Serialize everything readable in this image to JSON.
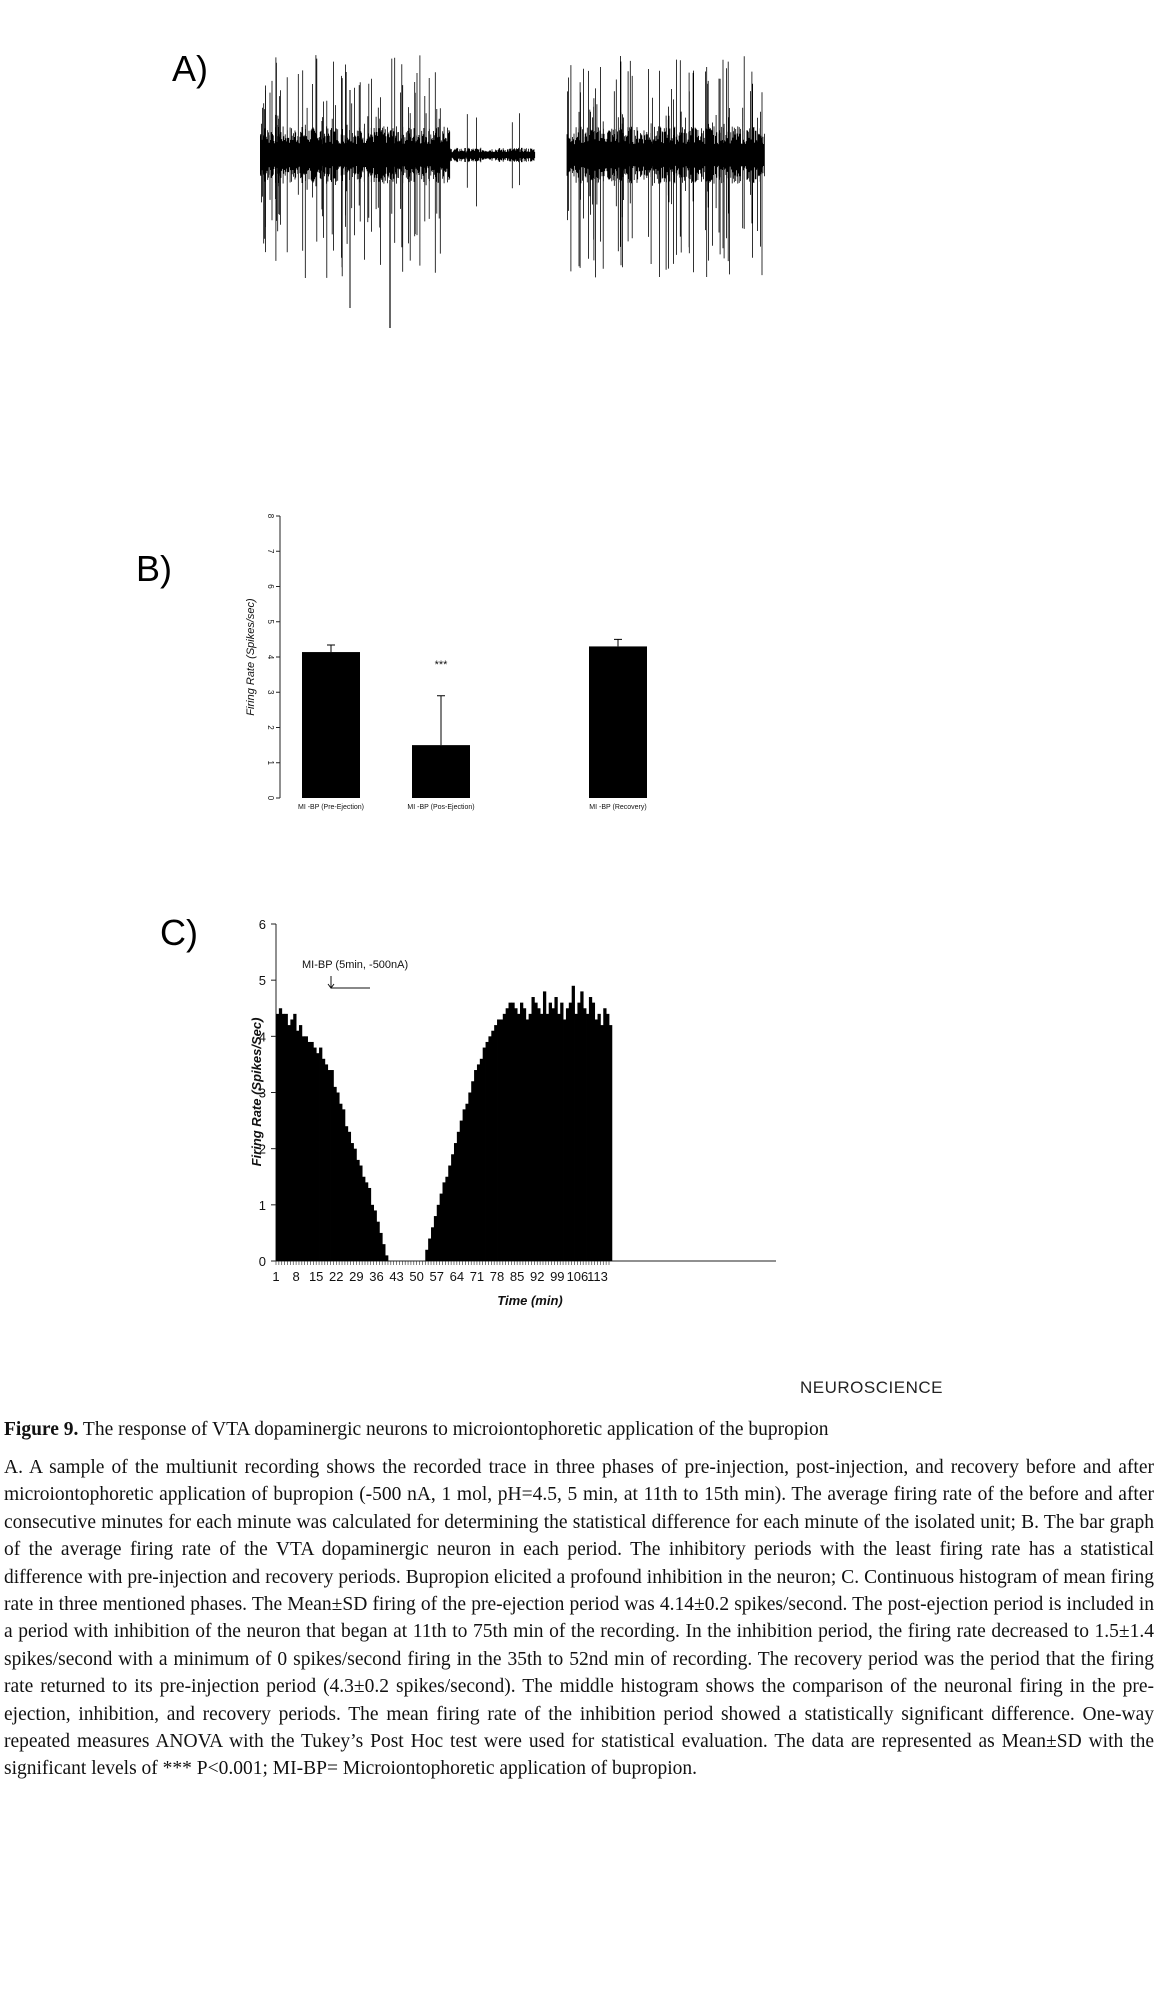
{
  "panels": {
    "a": {
      "label": "A)"
    },
    "b": {
      "label": "B)"
    },
    "c": {
      "label": "C)"
    }
  },
  "chart_data": [
    {
      "type": "bar",
      "panel": "B",
      "ylabel": "Firing Rate (Spikes/sec)",
      "ylim": [
        0,
        8
      ],
      "yticks": [
        "0",
        "1",
        "2",
        "3",
        "4",
        "5",
        "6",
        "7",
        "8"
      ],
      "categories": [
        "MI -BP (Pre-Ejection)",
        "MI -BP (Pos-Ejection)",
        "MI -BP (Recovery)"
      ],
      "values": [
        4.14,
        1.5,
        4.3
      ],
      "errors": [
        0.2,
        1.4,
        0.2
      ],
      "significance": [
        "",
        "***",
        ""
      ]
    },
    {
      "type": "bar",
      "panel": "C",
      "xlabel": "Time (min)",
      "ylabel": "Firing Rate (Spikes/Sec)",
      "ylim": [
        0,
        6
      ],
      "yticks": [
        "0",
        "1",
        "2",
        "3",
        "4",
        "5",
        "6"
      ],
      "xticks": [
        "1",
        "8",
        "15",
        "22",
        "29",
        "36",
        "43",
        "50",
        "57",
        "64",
        "71",
        "78",
        "85",
        "92",
        "99",
        "106",
        "113"
      ],
      "annotation": "MI-BP (5min, -500nA)",
      "x_start": 1,
      "x_end": 117,
      "values": [
        4.4,
        4.5,
        4.4,
        4.4,
        4.2,
        4.3,
        4.4,
        4.1,
        4.2,
        4.0,
        4.0,
        3.9,
        3.9,
        3.8,
        3.7,
        3.8,
        3.6,
        3.5,
        3.4,
        3.4,
        3.1,
        3.0,
        2.8,
        2.7,
        2.4,
        2.3,
        2.1,
        2.0,
        1.8,
        1.7,
        1.5,
        1.4,
        1.3,
        1.0,
        0.9,
        0.7,
        0.5,
        0.3,
        0.1,
        0,
        0,
        0,
        0,
        0,
        0,
        0,
        0,
        0,
        0,
        0,
        0,
        0,
        0.2,
        0.4,
        0.6,
        0.8,
        1.0,
        1.2,
        1.4,
        1.5,
        1.7,
        1.9,
        2.1,
        2.3,
        2.5,
        2.7,
        2.8,
        3.0,
        3.2,
        3.4,
        3.5,
        3.6,
        3.8,
        3.9,
        4.0,
        4.1,
        4.2,
        4.3,
        4.3,
        4.4,
        4.5,
        4.6,
        4.6,
        4.5,
        4.4,
        4.6,
        4.5,
        4.3,
        4.4,
        4.7,
        4.6,
        4.5,
        4.4,
        4.8,
        4.4,
        4.6,
        4.5,
        4.7,
        4.4,
        4.6,
        4.3,
        4.5,
        4.6,
        4.9,
        4.4,
        4.6,
        4.8,
        4.5,
        4.4,
        4.7,
        4.6,
        4.3,
        4.4,
        4.2,
        4.5,
        4.4,
        4.2
      ]
    }
  ],
  "journal": {
    "name": "NEUROSCIENCE"
  },
  "caption": {
    "figure_label": "Figure 9.",
    "title": "The response of VTA dopaminergic neurons to microiontophoretic application of the bupropion",
    "body": "A. A sample of the multiunit recording shows the recorded trace in three phases of pre-injection, post-injection, and recovery before and after microiontophoretic application of bupropion (-500 nA, 1 mol, pH=4.5, 5 min, at 11th to 15th min). The average firing rate of the before and after consecutive minutes for each minute was calculated for determining the statistical difference for each minute of the isolated unit; B. The bar graph of the average firing rate of the VTA dopaminergic neuron in each period. The inhibitory periods with the least firing rate has a statistical difference with pre-injection and recovery periods. Bupropion elicited a profound inhibition in the neuron; C. Continuous histogram of mean firing rate in three mentioned phases. The Mean±SD firing of the pre-ejection period was 4.14±0.2 spikes/second. The post-ejection period is included in a period with inhibition of the neuron that began at 11th to 75th min of the recording. In the inhibition period, the firing rate decreased to 1.5±1.4 spikes/second with a minimum of 0 spikes/second firing in the 35th to 52nd min of recording. The recovery period was the period that the firing rate returned to its pre-injection period (4.3±0.2 spikes/second). The middle histogram shows the comparison of the neuronal firing in the pre-ejection, inhibition, and recovery periods. The mean firing rate of the inhibition period showed a statistically significant difference. One-way repeated measures ANOVA with the Tukey’s Post Hoc test were used for statistical evaluation. The data are represented as Mean±SD with the significant levels of *** P<0.001; MI-BP= Microiontophoretic application of bupropion."
  }
}
